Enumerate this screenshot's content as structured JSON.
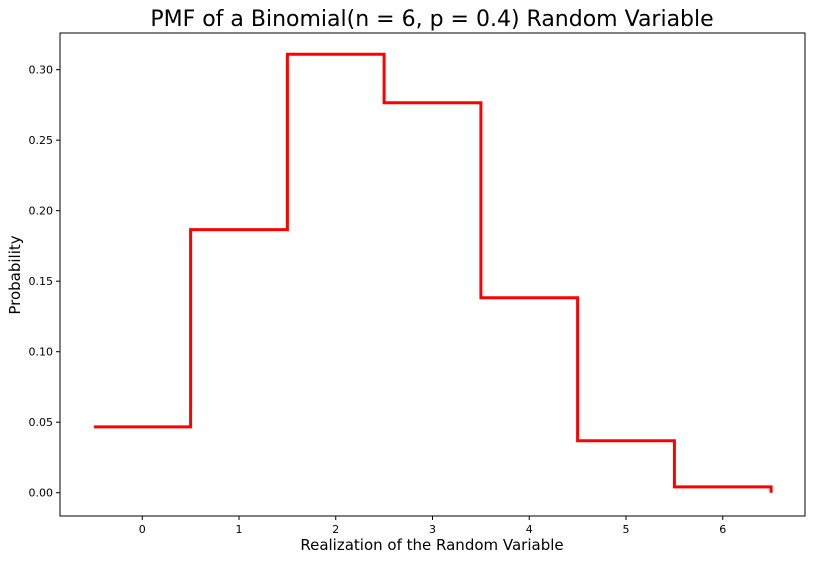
{
  "chart_data": {
    "type": "line",
    "title": "PMF of a Binomial(n = 6, p = 0.4) Random Variable",
    "xlabel": "Realization of the Random Variable",
    "ylabel": "Probability",
    "step_x": [
      -0.5,
      0.5,
      1.5,
      2.5,
      3.5,
      4.5,
      5.5,
      6.5
    ],
    "step_y": [
      0.0467,
      0.1866,
      0.311,
      0.2765,
      0.1382,
      0.0369,
      0.0041,
      0.0
    ],
    "xlim": [
      -0.85,
      6.85
    ],
    "ylim": [
      -0.0165,
      0.326
    ],
    "xticks": [
      0,
      1,
      2,
      3,
      4,
      5,
      6
    ],
    "xtick_labels": [
      "0",
      "1",
      "2",
      "3",
      "4",
      "5",
      "6"
    ],
    "yticks": [
      0.0,
      0.05,
      0.1,
      0.15,
      0.2,
      0.25,
      0.3
    ],
    "ytick_labels": [
      "0.00",
      "0.05",
      "0.10",
      "0.15",
      "0.20",
      "0.25",
      "0.30"
    ],
    "line_color": "#ff0000",
    "grid": false
  }
}
